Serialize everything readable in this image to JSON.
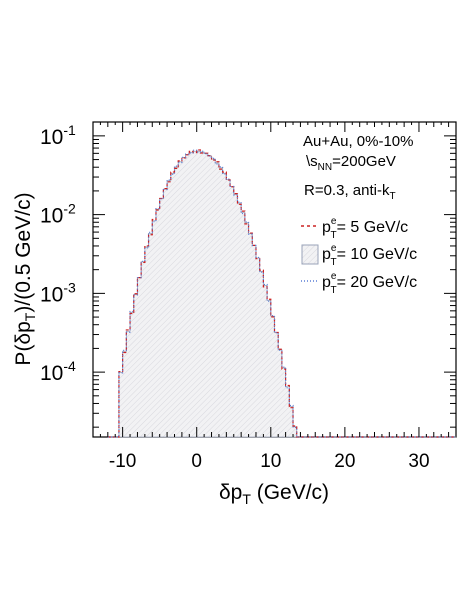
{
  "chart_data": {
    "type": "line",
    "title": "",
    "xlabel": "δp",
    "xlabel_sub": "T",
    "xlabel_unit": " (GeV/c)",
    "ylabel_parts": {
      "p": "P(δp",
      "sub": "T",
      "rest": ")/(0.5 GeV/c)"
    },
    "xlim": [
      -14,
      35
    ],
    "ylim": [
      1.5e-05,
      0.15
    ],
    "yscale": "log",
    "grid": false,
    "x_ticks": [
      {
        "value": -10,
        "label": "-10"
      },
      {
        "value": 0,
        "label": "0"
      },
      {
        "value": 10,
        "label": "10"
      },
      {
        "value": 20,
        "label": "20"
      },
      {
        "value": 30,
        "label": "30"
      }
    ],
    "y_ticks": [
      {
        "value": 0.1,
        "base": "10",
        "exp": "-1"
      },
      {
        "value": 0.01,
        "base": "10",
        "exp": "-2"
      },
      {
        "value": 0.001,
        "base": "10",
        "exp": "-3"
      },
      {
        "value": 0.0001,
        "base": "10",
        "exp": "-4"
      }
    ],
    "annotations": {
      "line1": "Au+Au, 0%-10%",
      "line2_pre": "\\s",
      "line2_sub": "NN",
      "line2_post": "=200GeV",
      "line3_pre": "R=0.3, anti-k",
      "line3_sub": "T"
    },
    "legend_position": "right",
    "series": [
      {
        "label_p": "p",
        "label_sup": "e",
        "label_sub": "T",
        "label_rest": "=  5 GeV/c",
        "color": "#cc2222",
        "style": "dashed-red",
        "mu": 0.0,
        "sigma_left": 2.85,
        "sigma_right": 3.3,
        "peak": 0.064
      },
      {
        "label_p": "p",
        "label_sup": "e",
        "label_sub": "T",
        "label_rest": "= 10 GeV/c",
        "color": "#9aa3b8",
        "style": "filled-hatch",
        "mu": 0.0,
        "sigma_left": 2.85,
        "sigma_right": 3.3,
        "peak": 0.064
      },
      {
        "label_p": "p",
        "label_sup": "e",
        "label_sub": "T",
        "label_rest": "= 20 GeV/c",
        "color": "#5a7fd6",
        "style": "dotted-blue",
        "mu": 0.0,
        "sigma_left": 2.85,
        "sigma_right": 3.3,
        "peak": 0.064
      }
    ],
    "bins": {
      "start": -12,
      "end": 35,
      "width": 0.5,
      "zero_left": -10.5,
      "zero_right": 15.5
    }
  },
  "colors": {
    "frame": "#000000",
    "hatch_fill": "#eeeeef",
    "red": "#cc2222",
    "blue": "#5a7fd6",
    "gray": "#9aa3b8"
  }
}
